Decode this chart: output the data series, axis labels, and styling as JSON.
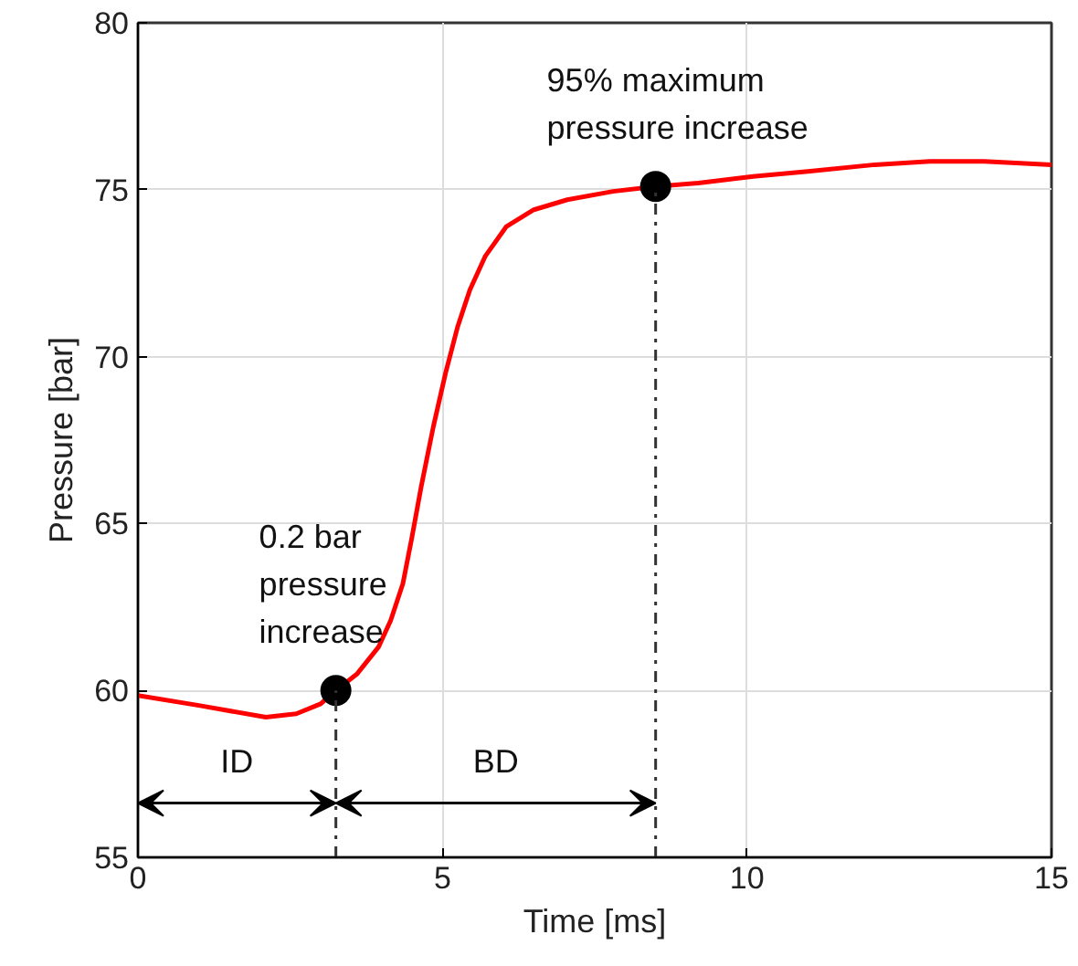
{
  "chart_data": {
    "type": "line",
    "xlabel": "Time [ms]",
    "ylabel": "Pressure [bar]",
    "xlim": [
      0,
      15
    ],
    "ylim": [
      55,
      80
    ],
    "xticks": [
      0,
      5,
      10,
      15
    ],
    "yticks": [
      55,
      60,
      65,
      70,
      75,
      80
    ],
    "grid": true,
    "line_style": "solid",
    "marker": "none",
    "series": [
      {
        "color": "#ff0000",
        "x": [
          0,
          1.0,
          2.1,
          2.6,
          3.0,
          3.25,
          3.6,
          3.95,
          4.15,
          4.35,
          4.5,
          4.65,
          4.85,
          5.05,
          5.25,
          5.45,
          5.7,
          6.05,
          6.5,
          7.05,
          7.8,
          8.5,
          9.2,
          10.1,
          11.0,
          12.1,
          13.0,
          13.9,
          15.0
        ],
        "values": [
          59.85,
          59.55,
          59.2,
          59.3,
          59.6,
          60.0,
          60.5,
          61.3,
          62.1,
          63.2,
          64.6,
          66.1,
          67.9,
          69.5,
          70.9,
          72.0,
          73.0,
          73.9,
          74.4,
          74.7,
          74.95,
          75.1,
          75.2,
          75.4,
          75.55,
          75.75,
          75.85,
          75.85,
          75.75
        ]
      },
      {
        "type": "scatter",
        "color": "#000000",
        "marker": "circle",
        "x": [
          3.25,
          8.5
        ],
        "values": [
          60.0,
          75.1
        ]
      }
    ],
    "ref_lines": [
      {
        "axis": "x",
        "value": 3.25,
        "label": null,
        "color": "#333333",
        "line_style": "dashdot"
      },
      {
        "axis": "x",
        "value": 8.5,
        "label": null,
        "color": "#333333",
        "line_style": "dashdot"
      }
    ],
    "annotations": [
      {
        "text": "0.2 bar\npressure\nincrease",
        "x": 3.25,
        "y": 60.0
      },
      {
        "text": "95% maximum\npressure increase",
        "x": 8.5,
        "y": 75.1
      },
      "ID",
      "BD"
    ]
  }
}
